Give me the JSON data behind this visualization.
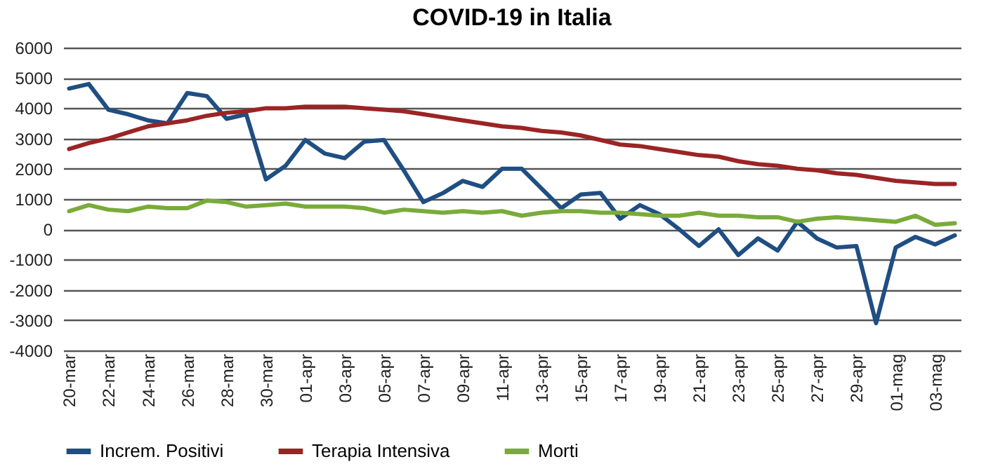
{
  "chart_data": {
    "type": "line",
    "title": "COVID-19 in Italia",
    "categories": [
      "20-mar",
      null,
      "22-mar",
      null,
      "24-mar",
      null,
      "26-mar",
      null,
      "28-mar",
      null,
      "30-mar",
      null,
      "01-apr",
      null,
      "03-apr",
      null,
      "05-apr",
      null,
      "07-apr",
      null,
      "09-apr",
      null,
      "11-apr",
      null,
      "13-apr",
      null,
      "15-apr",
      null,
      "17-apr",
      null,
      "19-apr",
      null,
      "21-apr",
      null,
      "23-apr",
      null,
      "25-apr",
      null,
      "27-apr",
      null,
      "29-apr",
      null,
      "01-mag",
      null,
      "03-mag",
      null
    ],
    "series": [
      {
        "name": "Increm. Positivi",
        "color": "#1f4e82",
        "values": [
          4650,
          4800,
          3950,
          3800,
          3600,
          3500,
          4500,
          4400,
          3650,
          3800,
          1650,
          2100,
          2950,
          2500,
          2350,
          2900,
          2950,
          1950,
          900,
          1200,
          1600,
          1400,
          2000,
          2000,
          1350,
          700,
          1150,
          1200,
          350,
          800,
          500,
          0,
          -550,
          0,
          -850,
          -300,
          -700,
          250,
          -300,
          -600,
          -550,
          -3100,
          -600,
          -250,
          -500,
          -200
        ]
      },
      {
        "name": "Terapia Intensiva",
        "color": "#9b2424",
        "values": [
          2650,
          2850,
          3000,
          3200,
          3400,
          3500,
          3600,
          3750,
          3850,
          3900,
          4000,
          4000,
          4050,
          4050,
          4050,
          4000,
          3950,
          3900,
          3800,
          3700,
          3600,
          3500,
          3400,
          3350,
          3250,
          3200,
          3100,
          2950,
          2800,
          2750,
          2650,
          2550,
          2450,
          2400,
          2250,
          2150,
          2100,
          2000,
          1950,
          1850,
          1800,
          1700,
          1600,
          1550,
          1500,
          1500
        ]
      },
      {
        "name": "Morti",
        "color": "#7aab3a",
        "values": [
          600,
          800,
          650,
          600,
          750,
          700,
          700,
          950,
          900,
          750,
          800,
          850,
          750,
          750,
          750,
          700,
          550,
          650,
          600,
          550,
          600,
          550,
          600,
          450,
          550,
          600,
          600,
          550,
          550,
          500,
          450,
          450,
          550,
          450,
          450,
          400,
          400,
          250,
          350,
          400,
          350,
          300,
          250,
          450,
          150,
          200
        ]
      }
    ],
    "ylim": [
      -4000,
      6000
    ],
    "yticks": [
      -4000,
      -3000,
      -2000,
      -1000,
      0,
      1000,
      2000,
      3000,
      4000,
      5000,
      6000
    ],
    "grid": "y",
    "legend": "bottom",
    "marker": "none",
    "line_style": "solid"
  }
}
